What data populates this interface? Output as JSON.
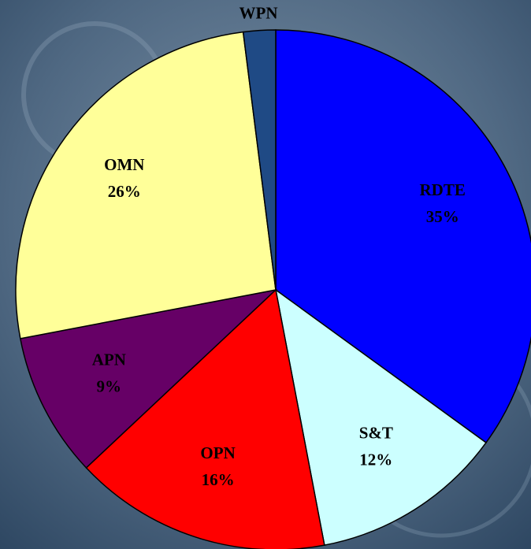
{
  "chart_data": {
    "type": "pie",
    "categories": [
      "RDTE",
      "S&T",
      "OPN",
      "APN",
      "OMN",
      "WPN"
    ],
    "values": [
      35,
      12,
      16,
      9,
      26,
      2
    ],
    "value_labels": [
      "35%",
      "12%",
      "16%",
      "9%",
      "26%",
      null
    ],
    "colors": [
      "#0000ff",
      "#ccffff",
      "#ff0000",
      "#660066",
      "#ffff99",
      "#1f4a85"
    ]
  }
}
